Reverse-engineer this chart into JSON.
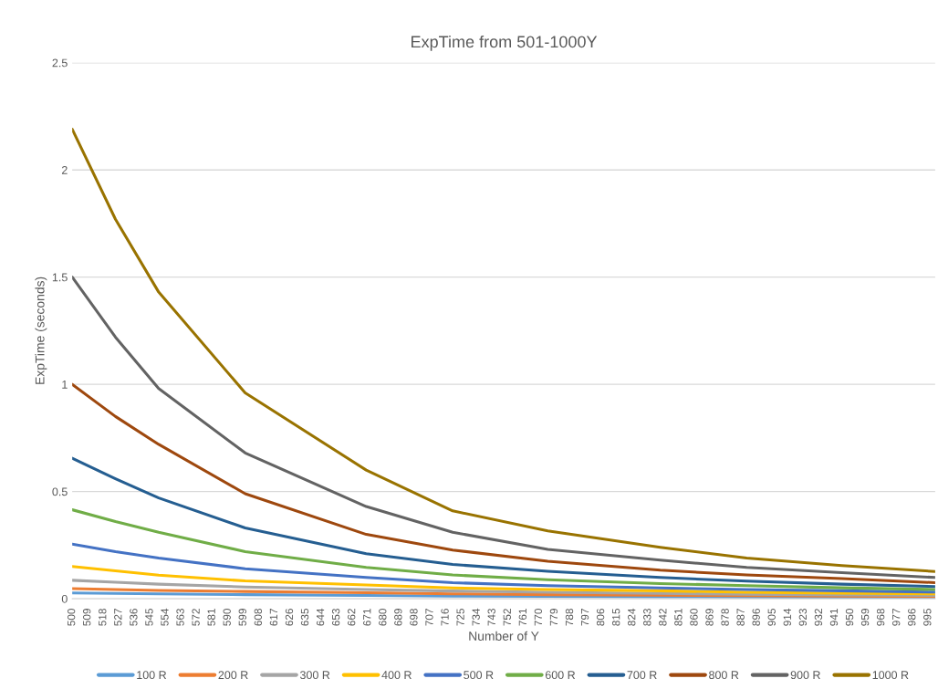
{
  "chart_data": {
    "type": "line",
    "title": "ExpTime from 501-1000Y",
    "xlabel": "Number of Y",
    "ylabel": "ExpTime (seconds)",
    "x": [
      500,
      525,
      550,
      600,
      670,
      720,
      775,
      840,
      890,
      945,
      999
    ],
    "xlim": [
      500,
      999
    ],
    "xticks": [
      500,
      509,
      518,
      527,
      536,
      545,
      554,
      563,
      572,
      581,
      590,
      599,
      608,
      617,
      626,
      635,
      644,
      653,
      662,
      671,
      680,
      689,
      698,
      707,
      716,
      725,
      734,
      743,
      752,
      761,
      770,
      779,
      788,
      797,
      806,
      815,
      824,
      833,
      842,
      851,
      860,
      869,
      878,
      887,
      896,
      905,
      914,
      923,
      932,
      941,
      950,
      959,
      968,
      977,
      986,
      995
    ],
    "ylim": [
      0,
      2.5
    ],
    "yticks": [
      0,
      0.5,
      1,
      1.5,
      2,
      2.5
    ],
    "grid": "y",
    "legend": "bottom",
    "marker": "none",
    "line_style": "solid",
    "series": [
      {
        "name": "100 R",
        "color": "#5b9bd5",
        "values": [
          0.027,
          0.025,
          0.023,
          0.019,
          0.015,
          0.012,
          0.011,
          0.009,
          0.008,
          0.007,
          0.006
        ]
      },
      {
        "name": "200 R",
        "color": "#ed7d31",
        "values": [
          0.047,
          0.043,
          0.039,
          0.034,
          0.028,
          0.023,
          0.019,
          0.016,
          0.014,
          0.012,
          0.01
        ]
      },
      {
        "name": "300 R",
        "color": "#a5a5a5",
        "values": [
          0.086,
          0.077,
          0.068,
          0.055,
          0.043,
          0.036,
          0.03,
          0.025,
          0.021,
          0.018,
          0.015
        ]
      },
      {
        "name": "400 R",
        "color": "#ffc000",
        "values": [
          0.15,
          0.13,
          0.11,
          0.083,
          0.064,
          0.05,
          0.043,
          0.037,
          0.03,
          0.026,
          0.023
        ]
      },
      {
        "name": "500 R",
        "color": "#4472c4",
        "values": [
          0.255,
          0.22,
          0.19,
          0.14,
          0.099,
          0.075,
          0.061,
          0.05,
          0.043,
          0.037,
          0.031
        ]
      },
      {
        "name": "600 R",
        "color": "#70ad47",
        "values": [
          0.415,
          0.36,
          0.31,
          0.22,
          0.146,
          0.111,
          0.089,
          0.071,
          0.061,
          0.051,
          0.043
        ]
      },
      {
        "name": "700 R",
        "color": "#255e91",
        "values": [
          0.655,
          0.56,
          0.47,
          0.33,
          0.21,
          0.16,
          0.128,
          0.099,
          0.082,
          0.068,
          0.057
        ]
      },
      {
        "name": "800 R",
        "color": "#9e480e",
        "values": [
          1.0,
          0.85,
          0.72,
          0.49,
          0.3,
          0.227,
          0.175,
          0.133,
          0.111,
          0.094,
          0.075
        ]
      },
      {
        "name": "900 R",
        "color": "#636363",
        "values": [
          1.5,
          1.22,
          0.98,
          0.68,
          0.43,
          0.31,
          0.23,
          0.18,
          0.146,
          0.122,
          0.099
        ]
      },
      {
        "name": "1000 R",
        "color": "#997300",
        "values": [
          2.19,
          1.77,
          1.43,
          0.96,
          0.6,
          0.41,
          0.316,
          0.24,
          0.19,
          0.155,
          0.127
        ]
      }
    ]
  }
}
